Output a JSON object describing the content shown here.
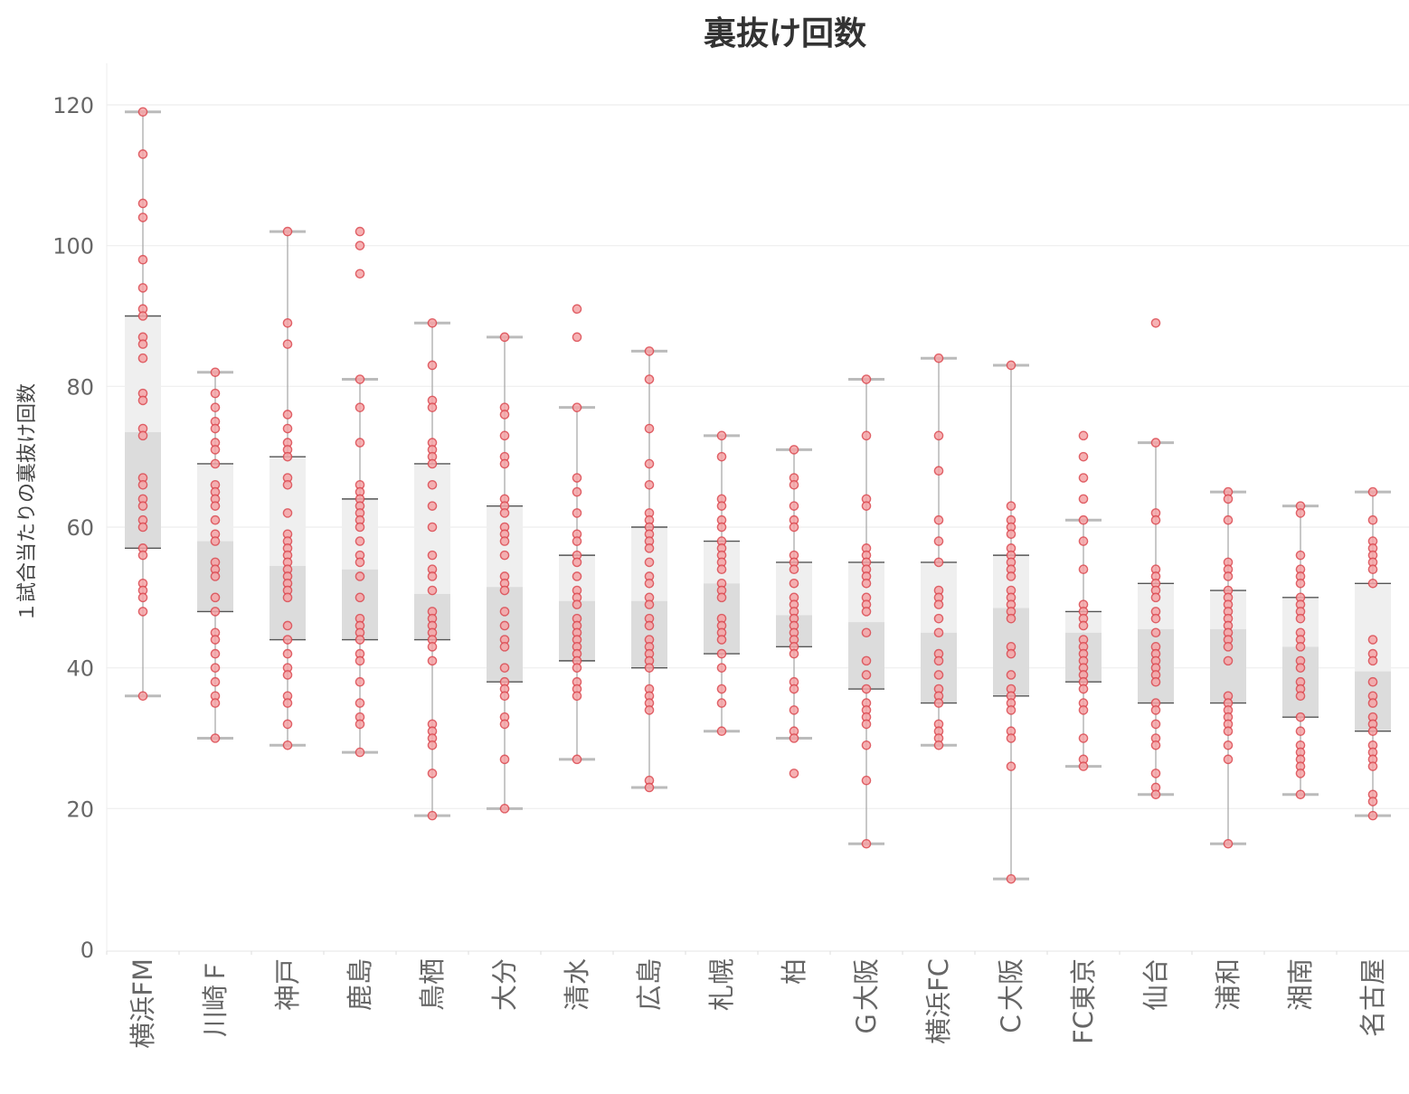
{
  "chart_data": {
    "type": "box",
    "title": "裏抜け回数",
    "xlabel": "",
    "ylabel": "１試合当たりの裏抜け回数",
    "ylim": [
      0,
      120
    ],
    "yticks": [
      0,
      20,
      40,
      60,
      80,
      100,
      120
    ],
    "grid": true,
    "colors": {
      "point_fill": "#f4a3a6",
      "point_stroke": "#d9424a",
      "box_upper": "#efefef",
      "box_lower": "#dcdcdc",
      "median_line": "#555555",
      "whisker": "#aaaaaa",
      "cap": "#bbbbbb",
      "grid": "#eeeeee"
    },
    "categories": [
      "横浜FM",
      "川崎Ｆ",
      "神戸",
      "鹿島",
      "鳥栖",
      "大分",
      "清水",
      "広島",
      "札幌",
      "柏",
      "Ｇ大阪",
      "横浜FC",
      "Ｃ大阪",
      "FC東京",
      "仙台",
      "浦和",
      "湘南",
      "名古屋"
    ],
    "boxes": [
      {
        "min": 36,
        "q1": 57,
        "median": 73.5,
        "q3": 90,
        "max": 119
      },
      {
        "min": 30,
        "q1": 48,
        "median": 58,
        "q3": 69,
        "max": 82
      },
      {
        "min": 29,
        "q1": 44,
        "median": 54.5,
        "q3": 70,
        "max": 102
      },
      {
        "min": 28,
        "q1": 44,
        "median": 54,
        "q3": 64,
        "max": 81
      },
      {
        "min": 19,
        "q1": 44,
        "median": 50.5,
        "q3": 69,
        "max": 89
      },
      {
        "min": 20,
        "q1": 38,
        "median": 51.5,
        "q3": 63,
        "max": 87
      },
      {
        "min": 27,
        "q1": 41,
        "median": 49.5,
        "q3": 56,
        "max": 77
      },
      {
        "min": 23,
        "q1": 40,
        "median": 49.5,
        "q3": 60,
        "max": 85
      },
      {
        "min": 31,
        "q1": 42,
        "median": 52,
        "q3": 58,
        "max": 73
      },
      {
        "min": 30,
        "q1": 43,
        "median": 47.5,
        "q3": 55,
        "max": 71
      },
      {
        "min": 15,
        "q1": 37,
        "median": 46.5,
        "q3": 55,
        "max": 81
      },
      {
        "min": 29,
        "q1": 35,
        "median": 45,
        "q3": 55,
        "max": 84
      },
      {
        "min": 10,
        "q1": 36,
        "median": 48.5,
        "q3": 56,
        "max": 83
      },
      {
        "min": 26,
        "q1": 38,
        "median": 45,
        "q3": 48,
        "max": 61
      },
      {
        "min": 22,
        "q1": 35,
        "median": 45.5,
        "q3": 52,
        "max": 72
      },
      {
        "min": 15,
        "q1": 35,
        "median": 45.5,
        "q3": 51,
        "max": 65
      },
      {
        "min": 22,
        "q1": 33,
        "median": 43,
        "q3": 50,
        "max": 63
      },
      {
        "min": 19,
        "q1": 31,
        "median": 39.5,
        "q3": 52,
        "max": 65
      }
    ],
    "points": [
      [
        119,
        113,
        106,
        104,
        98,
        94,
        91,
        90,
        87,
        86,
        84,
        79,
        78,
        74,
        73,
        67,
        66,
        64,
        63,
        61,
        60,
        57,
        56,
        52,
        51,
        50,
        48,
        36
      ],
      [
        82,
        79,
        77,
        75,
        74,
        72,
        71,
        69,
        66,
        65,
        64,
        63,
        61,
        59,
        58,
        55,
        54,
        53,
        50,
        48,
        45,
        44,
        42,
        40,
        38,
        36,
        35,
        30
      ],
      [
        102,
        89,
        86,
        76,
        74,
        72,
        71,
        70,
        67,
        66,
        62,
        59,
        58,
        57,
        56,
        55,
        54,
        53,
        52,
        51,
        50,
        46,
        44,
        42,
        40,
        39,
        36,
        35,
        32,
        29
      ],
      [
        102,
        100,
        96,
        81,
        77,
        72,
        66,
        65,
        64,
        63,
        62,
        61,
        60,
        58,
        56,
        55,
        53,
        50,
        47,
        46,
        45,
        44,
        42,
        41,
        38,
        35,
        33,
        32,
        28
      ],
      [
        89,
        83,
        78,
        77,
        72,
        71,
        70,
        69,
        66,
        63,
        60,
        56,
        54,
        53,
        51,
        48,
        47,
        46,
        45,
        44,
        43,
        41,
        32,
        31,
        30,
        29,
        25,
        19
      ],
      [
        87,
        77,
        76,
        73,
        70,
        69,
        64,
        63,
        62,
        60,
        59,
        58,
        56,
        53,
        52,
        51,
        48,
        46,
        44,
        43,
        40,
        38,
        37,
        36,
        33,
        32,
        27,
        20
      ],
      [
        91,
        87,
        77,
        67,
        65,
        62,
        59,
        58,
        56,
        55,
        53,
        51,
        50,
        49,
        47,
        46,
        45,
        44,
        43,
        42,
        41,
        40,
        38,
        37,
        36,
        27
      ],
      [
        85,
        81,
        74,
        69,
        66,
        62,
        61,
        60,
        59,
        58,
        57,
        55,
        53,
        52,
        50,
        49,
        47,
        46,
        44,
        43,
        42,
        41,
        40,
        37,
        36,
        35,
        34,
        24,
        23
      ],
      [
        73,
        70,
        64,
        63,
        61,
        60,
        58,
        57,
        56,
        55,
        54,
        52,
        51,
        50,
        47,
        46,
        45,
        44,
        42,
        40,
        37,
        35,
        31
      ],
      [
        71,
        67,
        66,
        63,
        61,
        60,
        56,
        55,
        54,
        52,
        50,
        49,
        48,
        47,
        46,
        45,
        44,
        43,
        42,
        38,
        37,
        34,
        31,
        30,
        25
      ],
      [
        81,
        73,
        64,
        63,
        57,
        56,
        55,
        54,
        53,
        52,
        50,
        49,
        48,
        45,
        41,
        39,
        37,
        35,
        34,
        33,
        32,
        29,
        24,
        15
      ],
      [
        84,
        73,
        68,
        61,
        58,
        55,
        51,
        50,
        49,
        47,
        45,
        42,
        41,
        39,
        37,
        36,
        35,
        32,
        31,
        30,
        29
      ],
      [
        83,
        63,
        61,
        60,
        59,
        57,
        56,
        55,
        54,
        53,
        51,
        50,
        49,
        48,
        47,
        43,
        42,
        39,
        37,
        36,
        35,
        34,
        31,
        30,
        26,
        10
      ],
      [
        73,
        70,
        67,
        64,
        61,
        58,
        54,
        49,
        48,
        47,
        46,
        44,
        43,
        42,
        41,
        40,
        39,
        38,
        37,
        35,
        34,
        30,
        27,
        26
      ],
      [
        89,
        72,
        62,
        61,
        54,
        53,
        52,
        51,
        50,
        48,
        47,
        45,
        43,
        42,
        41,
        40,
        39,
        38,
        35,
        34,
        32,
        30,
        29,
        25,
        23,
        22
      ],
      [
        65,
        64,
        61,
        55,
        54,
        53,
        51,
        50,
        49,
        48,
        47,
        46,
        45,
        44,
        43,
        41,
        36,
        35,
        34,
        33,
        32,
        31,
        29,
        27,
        15
      ],
      [
        63,
        62,
        56,
        54,
        53,
        52,
        50,
        49,
        48,
        47,
        45,
        44,
        43,
        41,
        40,
        38,
        37,
        36,
        33,
        31,
        29,
        28,
        27,
        26,
        25,
        22
      ],
      [
        65,
        61,
        58,
        57,
        56,
        55,
        54,
        52,
        44,
        42,
        41,
        38,
        36,
        35,
        33,
        32,
        31,
        29,
        28,
        27,
        26,
        22,
        21,
        19
      ]
    ]
  }
}
